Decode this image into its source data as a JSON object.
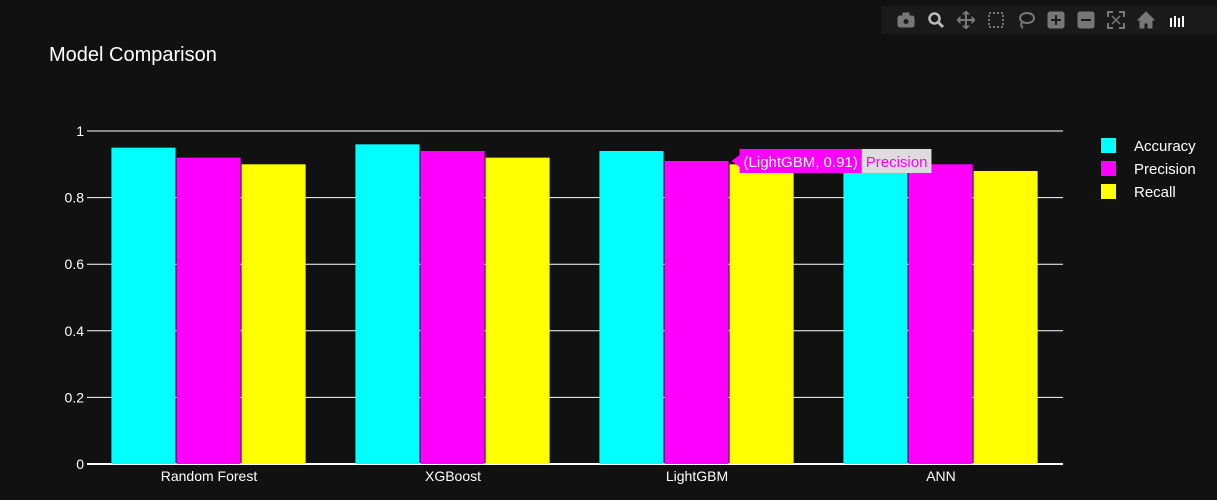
{
  "title": "Model Comparison",
  "colors": {
    "background": "#111111",
    "grid": "#ffffff",
    "Accuracy": "#00ffff",
    "Precision": "#ff00ff",
    "Recall": "#ffff00"
  },
  "modebar": {
    "icons": [
      "camera-icon",
      "zoom-icon",
      "pan-icon",
      "box-select-icon",
      "lasso-icon",
      "zoom-in-icon",
      "zoom-out-icon",
      "autoscale-icon",
      "reset-axes-icon",
      "plotly-logo-icon"
    ]
  },
  "tooltip": {
    "text": "(LightGBM, 0.91)",
    "series": "Precision"
  },
  "chart_data": {
    "type": "bar",
    "title": "Model Comparison",
    "categories": [
      "Random Forest",
      "XGBoost",
      "LightGBM",
      "ANN"
    ],
    "series": [
      {
        "name": "Accuracy",
        "values": [
          0.95,
          0.96,
          0.94,
          0.92
        ]
      },
      {
        "name": "Precision",
        "values": [
          0.92,
          0.94,
          0.91,
          0.9
        ]
      },
      {
        "name": "Recall",
        "values": [
          0.9,
          0.92,
          0.9,
          0.88
        ]
      }
    ],
    "ylim": [
      0,
      1
    ],
    "yticks": [
      "0",
      "0.2",
      "0.4",
      "0.6",
      "0.8",
      "1"
    ],
    "ytick_values": [
      0,
      0.2,
      0.4,
      0.6,
      0.8,
      1
    ],
    "grid": true,
    "legend_position": "top-right"
  }
}
